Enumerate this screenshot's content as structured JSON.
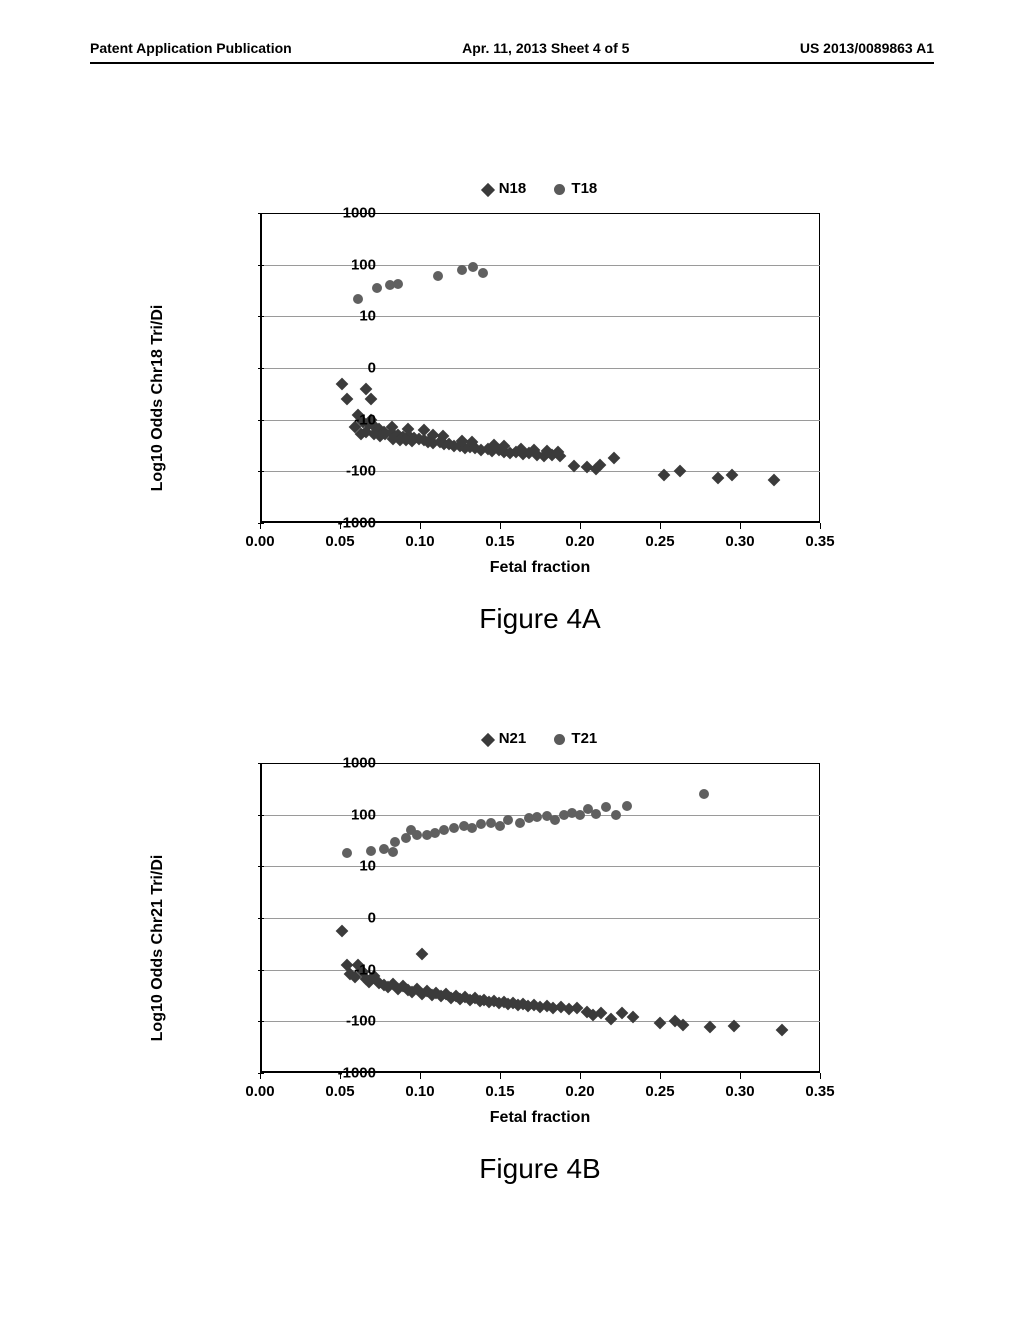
{
  "header": {
    "left": "Patent Application Publication",
    "center": "Apr. 11, 2013  Sheet 4 of 5",
    "right": "US 2013/0089863 A1"
  },
  "chartA": {
    "legend": {
      "n": "N18",
      "t": "T18"
    },
    "ylabel": "Log10 Odds Chr18 Tri/Di",
    "xlabel": "Fetal fraction",
    "caption": "Figure 4A",
    "yticks": [
      1000,
      100,
      10,
      0,
      -10,
      -100,
      -1000
    ],
    "xticks": [
      "0.00",
      "0.05",
      "0.10",
      "0.15",
      "0.20",
      "0.25",
      "0.30",
      "0.35"
    ],
    "xmin": 0.0,
    "xmax": 0.35,
    "seriesN": [
      [
        0.05,
        -3
      ],
      [
        0.053,
        -6
      ],
      [
        0.065,
        -4
      ],
      [
        0.068,
        -6
      ],
      [
        0.06,
        -9
      ],
      [
        0.063,
        -11
      ],
      [
        0.067,
        -12
      ],
      [
        0.058,
        -14
      ],
      [
        0.068,
        -10
      ],
      [
        0.07,
        -13
      ],
      [
        0.073,
        -15
      ],
      [
        0.076,
        -17
      ],
      [
        0.065,
        -17
      ],
      [
        0.062,
        -19
      ],
      [
        0.07,
        -19
      ],
      [
        0.074,
        -21
      ],
      [
        0.077,
        -19
      ],
      [
        0.081,
        -18
      ],
      [
        0.085,
        -20
      ],
      [
        0.088,
        -22
      ],
      [
        0.092,
        -21
      ],
      [
        0.095,
        -23
      ],
      [
        0.082,
        -24
      ],
      [
        0.086,
        -25
      ],
      [
        0.09,
        -25
      ],
      [
        0.094,
        -26
      ],
      [
        0.098,
        -24
      ],
      [
        0.101,
        -25
      ],
      [
        0.104,
        -27
      ],
      [
        0.081,
        -14
      ],
      [
        0.091,
        -15
      ],
      [
        0.101,
        -16
      ],
      [
        0.107,
        -28
      ],
      [
        0.111,
        -27
      ],
      [
        0.114,
        -30
      ],
      [
        0.117,
        -30
      ],
      [
        0.107,
        -20
      ],
      [
        0.113,
        -21
      ],
      [
        0.12,
        -33
      ],
      [
        0.124,
        -32
      ],
      [
        0.127,
        -35
      ],
      [
        0.13,
        -34
      ],
      [
        0.133,
        -36
      ],
      [
        0.125,
        -26
      ],
      [
        0.131,
        -27
      ],
      [
        0.137,
        -38
      ],
      [
        0.141,
        -37
      ],
      [
        0.144,
        -40
      ],
      [
        0.148,
        -39
      ],
      [
        0.151,
        -42
      ],
      [
        0.145,
        -31
      ],
      [
        0.151,
        -33
      ],
      [
        0.155,
        -44
      ],
      [
        0.159,
        -42
      ],
      [
        0.163,
        -46
      ],
      [
        0.167,
        -44
      ],
      [
        0.172,
        -48
      ],
      [
        0.162,
        -37
      ],
      [
        0.17,
        -38
      ],
      [
        0.176,
        -50
      ],
      [
        0.181,
        -48
      ],
      [
        0.186,
        -51
      ],
      [
        0.178,
        -41
      ],
      [
        0.185,
        -42
      ],
      [
        0.195,
        -80
      ],
      [
        0.203,
        -82
      ],
      [
        0.211,
        -75
      ],
      [
        0.209,
        -92
      ],
      [
        0.22,
        -55
      ],
      [
        0.251,
        -120
      ],
      [
        0.261,
        -100
      ],
      [
        0.285,
        -135
      ],
      [
        0.294,
        -120
      ],
      [
        0.32,
        -150
      ]
    ],
    "seriesT": [
      [
        0.06,
        22
      ],
      [
        0.072,
        35
      ],
      [
        0.08,
        40
      ],
      [
        0.085,
        42
      ],
      [
        0.11,
        60
      ],
      [
        0.125,
        80
      ],
      [
        0.132,
        90
      ],
      [
        0.138,
        70
      ]
    ]
  },
  "chartB": {
    "legend": {
      "n": "N21",
      "t": "T21"
    },
    "ylabel": "Log10 Odds Chr21 Tri/Di",
    "xlabel": "Fetal fraction",
    "caption": "Figure 4B",
    "yticks": [
      1000,
      100,
      10,
      0,
      -10,
      -100,
      -1000
    ],
    "xticks": [
      "0.00",
      "0.05",
      "0.10",
      "0.15",
      "0.20",
      "0.25",
      "0.30",
      "0.35"
    ],
    "xmin": 0.0,
    "xmax": 0.35,
    "seriesN": [
      [
        0.05,
        -2.5
      ],
      [
        0.053,
        -9
      ],
      [
        0.055,
        -12
      ],
      [
        0.058,
        -14
      ],
      [
        0.06,
        -9
      ],
      [
        0.063,
        -11
      ],
      [
        0.065,
        -15
      ],
      [
        0.067,
        -17
      ],
      [
        0.07,
        -13
      ],
      [
        0.073,
        -18
      ],
      [
        0.076,
        -20
      ],
      [
        0.079,
        -22
      ],
      [
        0.082,
        -19
      ],
      [
        0.085,
        -24
      ],
      [
        0.088,
        -21
      ],
      [
        0.091,
        -25
      ],
      [
        0.094,
        -27
      ],
      [
        0.097,
        -24
      ],
      [
        0.1,
        -29
      ],
      [
        0.103,
        -26
      ],
      [
        0.106,
        -31
      ],
      [
        0.109,
        -28
      ],
      [
        0.1,
        -7
      ],
      [
        0.112,
        -33
      ],
      [
        0.115,
        -30
      ],
      [
        0.118,
        -35
      ],
      [
        0.121,
        -32
      ],
      [
        0.124,
        -37
      ],
      [
        0.127,
        -34
      ],
      [
        0.13,
        -39
      ],
      [
        0.133,
        -36
      ],
      [
        0.136,
        -41
      ],
      [
        0.139,
        -38
      ],
      [
        0.142,
        -43
      ],
      [
        0.145,
        -40
      ],
      [
        0.148,
        -45
      ],
      [
        0.151,
        -42
      ],
      [
        0.154,
        -47
      ],
      [
        0.157,
        -44
      ],
      [
        0.16,
        -49
      ],
      [
        0.163,
        -46
      ],
      [
        0.166,
        -51
      ],
      [
        0.17,
        -48
      ],
      [
        0.174,
        -53
      ],
      [
        0.178,
        -50
      ],
      [
        0.182,
        -55
      ],
      [
        0.187,
        -52
      ],
      [
        0.192,
        -58
      ],
      [
        0.197,
        -55
      ],
      [
        0.203,
        -65
      ],
      [
        0.207,
        -75
      ],
      [
        0.212,
        -70
      ],
      [
        0.218,
        -90
      ],
      [
        0.225,
        -68
      ],
      [
        0.232,
        -82
      ],
      [
        0.249,
        -110
      ],
      [
        0.258,
        -100
      ],
      [
        0.263,
        -120
      ],
      [
        0.28,
        -130
      ],
      [
        0.295,
        -125
      ],
      [
        0.325,
        -150
      ]
    ],
    "seriesT": [
      [
        0.053,
        18
      ],
      [
        0.068,
        20
      ],
      [
        0.076,
        22
      ],
      [
        0.082,
        19
      ],
      [
        0.083,
        30
      ],
      [
        0.09,
        35
      ],
      [
        0.097,
        40
      ],
      [
        0.103,
        40
      ],
      [
        0.093,
        50
      ],
      [
        0.108,
        45
      ],
      [
        0.114,
        50
      ],
      [
        0.12,
        55
      ],
      [
        0.126,
        60
      ],
      [
        0.131,
        55
      ],
      [
        0.137,
        65
      ],
      [
        0.143,
        70
      ],
      [
        0.149,
        60
      ],
      [
        0.154,
        80
      ],
      [
        0.161,
        70
      ],
      [
        0.167,
        85
      ],
      [
        0.172,
        90
      ],
      [
        0.178,
        95
      ],
      [
        0.183,
        80
      ],
      [
        0.189,
        100
      ],
      [
        0.194,
        110
      ],
      [
        0.199,
        100
      ],
      [
        0.204,
        130
      ],
      [
        0.209,
        105
      ],
      [
        0.215,
        140
      ],
      [
        0.221,
        100
      ],
      [
        0.228,
        150
      ],
      [
        0.276,
        250
      ]
    ]
  },
  "colors": {
    "diamond": "#3b3b3b",
    "circle": "#606060",
    "grid": "#9a9a9a",
    "axis": "#000000",
    "bg": "#ffffff"
  }
}
